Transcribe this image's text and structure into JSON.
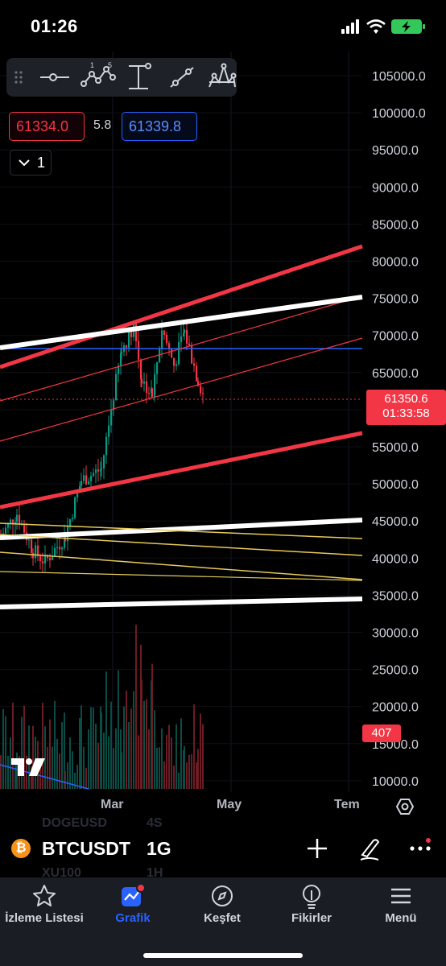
{
  "status_bar": {
    "time": "01:26"
  },
  "quote": {
    "bid": "61334.0",
    "spread": "5.8",
    "ask": "61339.8"
  },
  "interval_toggle": {
    "count": "1"
  },
  "price_scale": {
    "ticks": [
      "105000.0",
      "100000.0",
      "95000.0",
      "90000.0",
      "85000.0",
      "80000.0",
      "75000.0",
      "70000.0",
      "65000.0",
      "60000.0",
      "55000.0",
      "50000.0",
      "45000.0",
      "40000.0",
      "35000.0",
      "30000.0",
      "25000.0",
      "20000.0",
      "15000.0",
      "10000.0"
    ],
    "current_price": "61350.6",
    "countdown": "01:33:58",
    "volume_label": "407"
  },
  "time_axis": {
    "labels": [
      "Mar",
      "May",
      "Tem"
    ]
  },
  "symbol_bar": {
    "symbol": "BTCUSDT",
    "interval": "1G",
    "ghost_above_symbol": "DOGEUSD",
    "ghost_above_interval": "4S",
    "ghost_below_symbol": "XU100",
    "ghost_below_interval": "1H"
  },
  "nav": {
    "items": [
      {
        "label": "İzleme Listesi",
        "icon": "star-icon"
      },
      {
        "label": "Grafik",
        "icon": "chart-icon"
      },
      {
        "label": "Keşfet",
        "icon": "compass-icon"
      },
      {
        "label": "Fikirler",
        "icon": "lightbulb-icon"
      },
      {
        "label": "Menü",
        "icon": "hamburger-icon"
      }
    ],
    "active": "Grafik"
  },
  "colors": {
    "accent": "#2962ff",
    "down": "#f23645",
    "up": "#089981",
    "trendline": "#f23645",
    "support": "#ffffff",
    "fib": "#e5c95a"
  }
}
